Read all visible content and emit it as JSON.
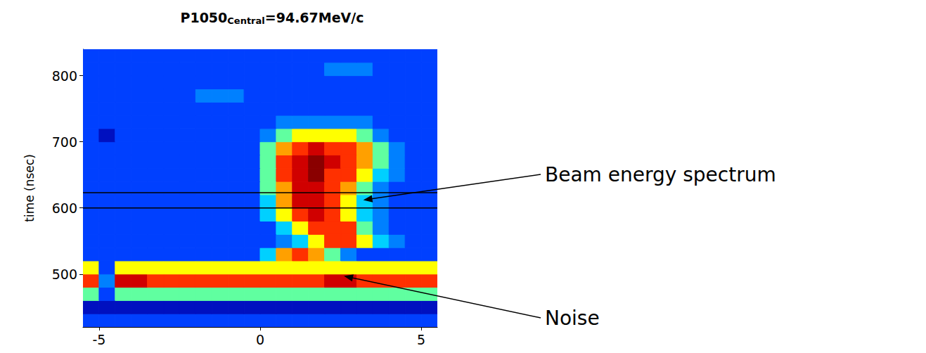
{
  "chart_data": {
    "type": "heatmap",
    "title": "P1050Central=94.67MeV/c",
    "title_subscript": "Central",
    "ylabel": "time (nsec)",
    "x": [
      -5.25,
      -4.75,
      -4.25,
      -3.75,
      -3.25,
      -2.75,
      -2.25,
      -1.75,
      -1.25,
      -0.75,
      -0.25,
      0.25,
      0.75,
      1.25,
      1.75,
      2.25,
      2.75,
      3.25,
      3.75,
      4.25,
      4.75,
      5.25
    ],
    "y": [
      430,
      450,
      470,
      490,
      510,
      530,
      550,
      570,
      590,
      610,
      630,
      650,
      670,
      690,
      710,
      730,
      750,
      770,
      790,
      810,
      830
    ],
    "z": [
      [
        2,
        2,
        2,
        2,
        2,
        2,
        2,
        2,
        2,
        2,
        2,
        2,
        2,
        2,
        2,
        2,
        2,
        2,
        2,
        2,
        2,
        2
      ],
      [
        1,
        1,
        1,
        1,
        1,
        1,
        1,
        1,
        1,
        1,
        1,
        1,
        1,
        1,
        1,
        1,
        1,
        1,
        1,
        1,
        1,
        1
      ],
      [
        5,
        2,
        5,
        5,
        5,
        5,
        5,
        5,
        5,
        5,
        5,
        5,
        5,
        5,
        5,
        5,
        5,
        5,
        5,
        5,
        5,
        5
      ],
      [
        8,
        3,
        9,
        9,
        8,
        8,
        8,
        8,
        8,
        8,
        8,
        8,
        8,
        8,
        8,
        9,
        9,
        8,
        8,
        8,
        8,
        8
      ],
      [
        6,
        2,
        6,
        6,
        6,
        6,
        6,
        6,
        6,
        6,
        6,
        6,
        6,
        6,
        6,
        6,
        6,
        6,
        6,
        6,
        6,
        6
      ],
      [
        2,
        2,
        2,
        2,
        2,
        2,
        2,
        2,
        2,
        2,
        2,
        4,
        7,
        8,
        7,
        5,
        3,
        2,
        2,
        2,
        2,
        2
      ],
      [
        2,
        2,
        2,
        2,
        2,
        2,
        2,
        2,
        2,
        2,
        2,
        2,
        3,
        4,
        6,
        8,
        8,
        6,
        4,
        3,
        2,
        2
      ],
      [
        2,
        2,
        2,
        2,
        2,
        2,
        2,
        2,
        2,
        2,
        2,
        2,
        4,
        6,
        8,
        8,
        8,
        5,
        3,
        2,
        2,
        2
      ],
      [
        2,
        2,
        2,
        2,
        2,
        2,
        2,
        2,
        2,
        2,
        2,
        4,
        6,
        8,
        9,
        8,
        6,
        4,
        3,
        2,
        2,
        2
      ],
      [
        2,
        2,
        2,
        2,
        2,
        2,
        2,
        2,
        2,
        2,
        2,
        4,
        7,
        9,
        9,
        8,
        6,
        4,
        3,
        2,
        2,
        2
      ],
      [
        2,
        2,
        2,
        2,
        2,
        2,
        2,
        2,
        2,
        2,
        2,
        5,
        7,
        9,
        9,
        8,
        7,
        5,
        3,
        2,
        2,
        2
      ],
      [
        2,
        2,
        2,
        2,
        2,
        2,
        2,
        2,
        2,
        2,
        2,
        5,
        8,
        9,
        10,
        8,
        8,
        6,
        4,
        3,
        2,
        2
      ],
      [
        2,
        2,
        2,
        2,
        2,
        2,
        2,
        2,
        2,
        2,
        2,
        5,
        8,
        9,
        10,
        9,
        8,
        7,
        5,
        3,
        2,
        2
      ],
      [
        2,
        2,
        2,
        2,
        2,
        2,
        2,
        2,
        2,
        2,
        2,
        5,
        7,
        8,
        9,
        8,
        8,
        7,
        5,
        3,
        2,
        2
      ],
      [
        2,
        1,
        2,
        2,
        2,
        2,
        2,
        2,
        2,
        2,
        2,
        3,
        5,
        6,
        6,
        6,
        6,
        5,
        3,
        2,
        2,
        2
      ],
      [
        2,
        2,
        2,
        2,
        2,
        2,
        2,
        2,
        2,
        2,
        2,
        2,
        3,
        3,
        3,
        3,
        3,
        3,
        2,
        2,
        2,
        2
      ],
      [
        2,
        2,
        2,
        2,
        2,
        2,
        2,
        2,
        2,
        2,
        2,
        2,
        2,
        2,
        2,
        2,
        2,
        2,
        2,
        2,
        2,
        2
      ],
      [
        2,
        2,
        2,
        2,
        2,
        2,
        2,
        3,
        3,
        3,
        2,
        2,
        2,
        2,
        2,
        2,
        2,
        2,
        2,
        2,
        2,
        2
      ],
      [
        2,
        2,
        2,
        2,
        2,
        2,
        2,
        2,
        2,
        2,
        2,
        2,
        2,
        2,
        2,
        2,
        2,
        2,
        2,
        2,
        2,
        2
      ],
      [
        2,
        2,
        2,
        2,
        2,
        2,
        2,
        2,
        2,
        2,
        2,
        2,
        2,
        2,
        2,
        3,
        3,
        3,
        2,
        2,
        2,
        2
      ],
      [
        2,
        2,
        2,
        2,
        2,
        2,
        2,
        2,
        2,
        2,
        2,
        2,
        2,
        2,
        2,
        2,
        2,
        2,
        2,
        2,
        2,
        2
      ]
    ],
    "zlim": [
      0,
      10
    ],
    "xlim": [
      -5.5,
      5.5
    ],
    "ylim": [
      420,
      840
    ],
    "xticks": [
      -5,
      0,
      5
    ],
    "yticks": [
      500,
      600,
      700,
      800
    ],
    "grid": false,
    "hlines": [
      600,
      623
    ],
    "annotations": [
      {
        "text": "Beam energy spectrum",
        "x": 3.2,
        "y": 612
      },
      {
        "text": "Noise",
        "x": 2.6,
        "y": 497
      }
    ]
  }
}
